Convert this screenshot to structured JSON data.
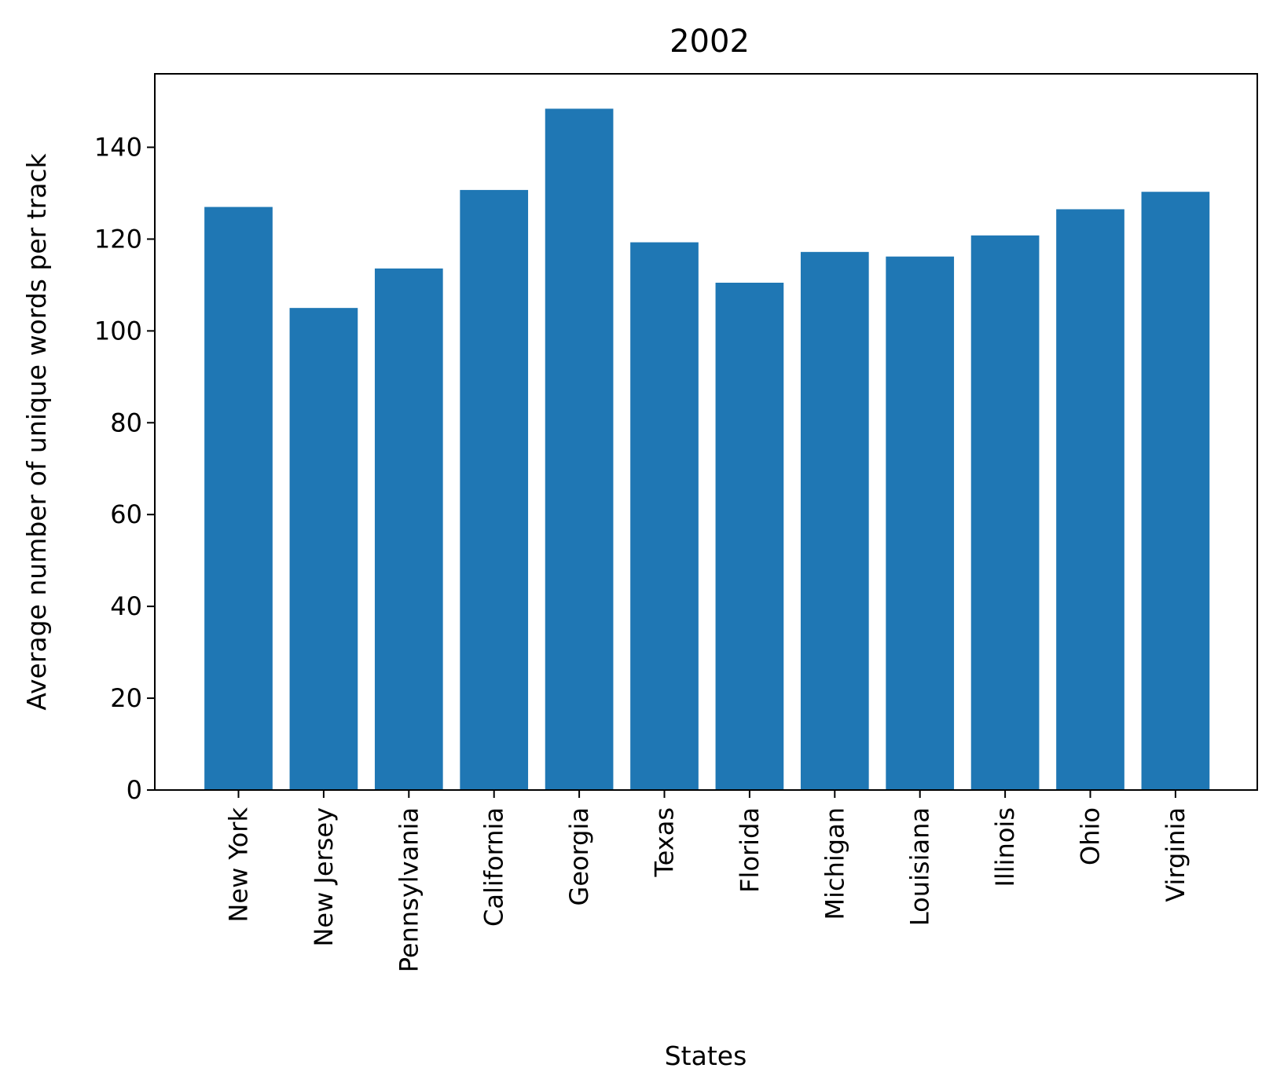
{
  "chart_data": {
    "type": "bar",
    "title": "2002",
    "xlabel": "States",
    "ylabel": "Average number of unique words per track",
    "categories": [
      "New York",
      "New Jersey",
      "Pennsylvania",
      "California",
      "Georgia",
      "Texas",
      "Florida",
      "Michigan",
      "Louisiana",
      "Illinois",
      "Ohio",
      "Virginia"
    ],
    "values": [
      127,
      105,
      113.6,
      130.7,
      148.4,
      119.3,
      110.5,
      117.2,
      116.2,
      120.8,
      126.5,
      130.3
    ],
    "ylim": [
      0,
      156
    ],
    "yticks": [
      "0",
      "20",
      "40",
      "60",
      "80",
      "100",
      "120",
      "140"
    ],
    "grid": false,
    "bar_color": "#1f77b4"
  }
}
